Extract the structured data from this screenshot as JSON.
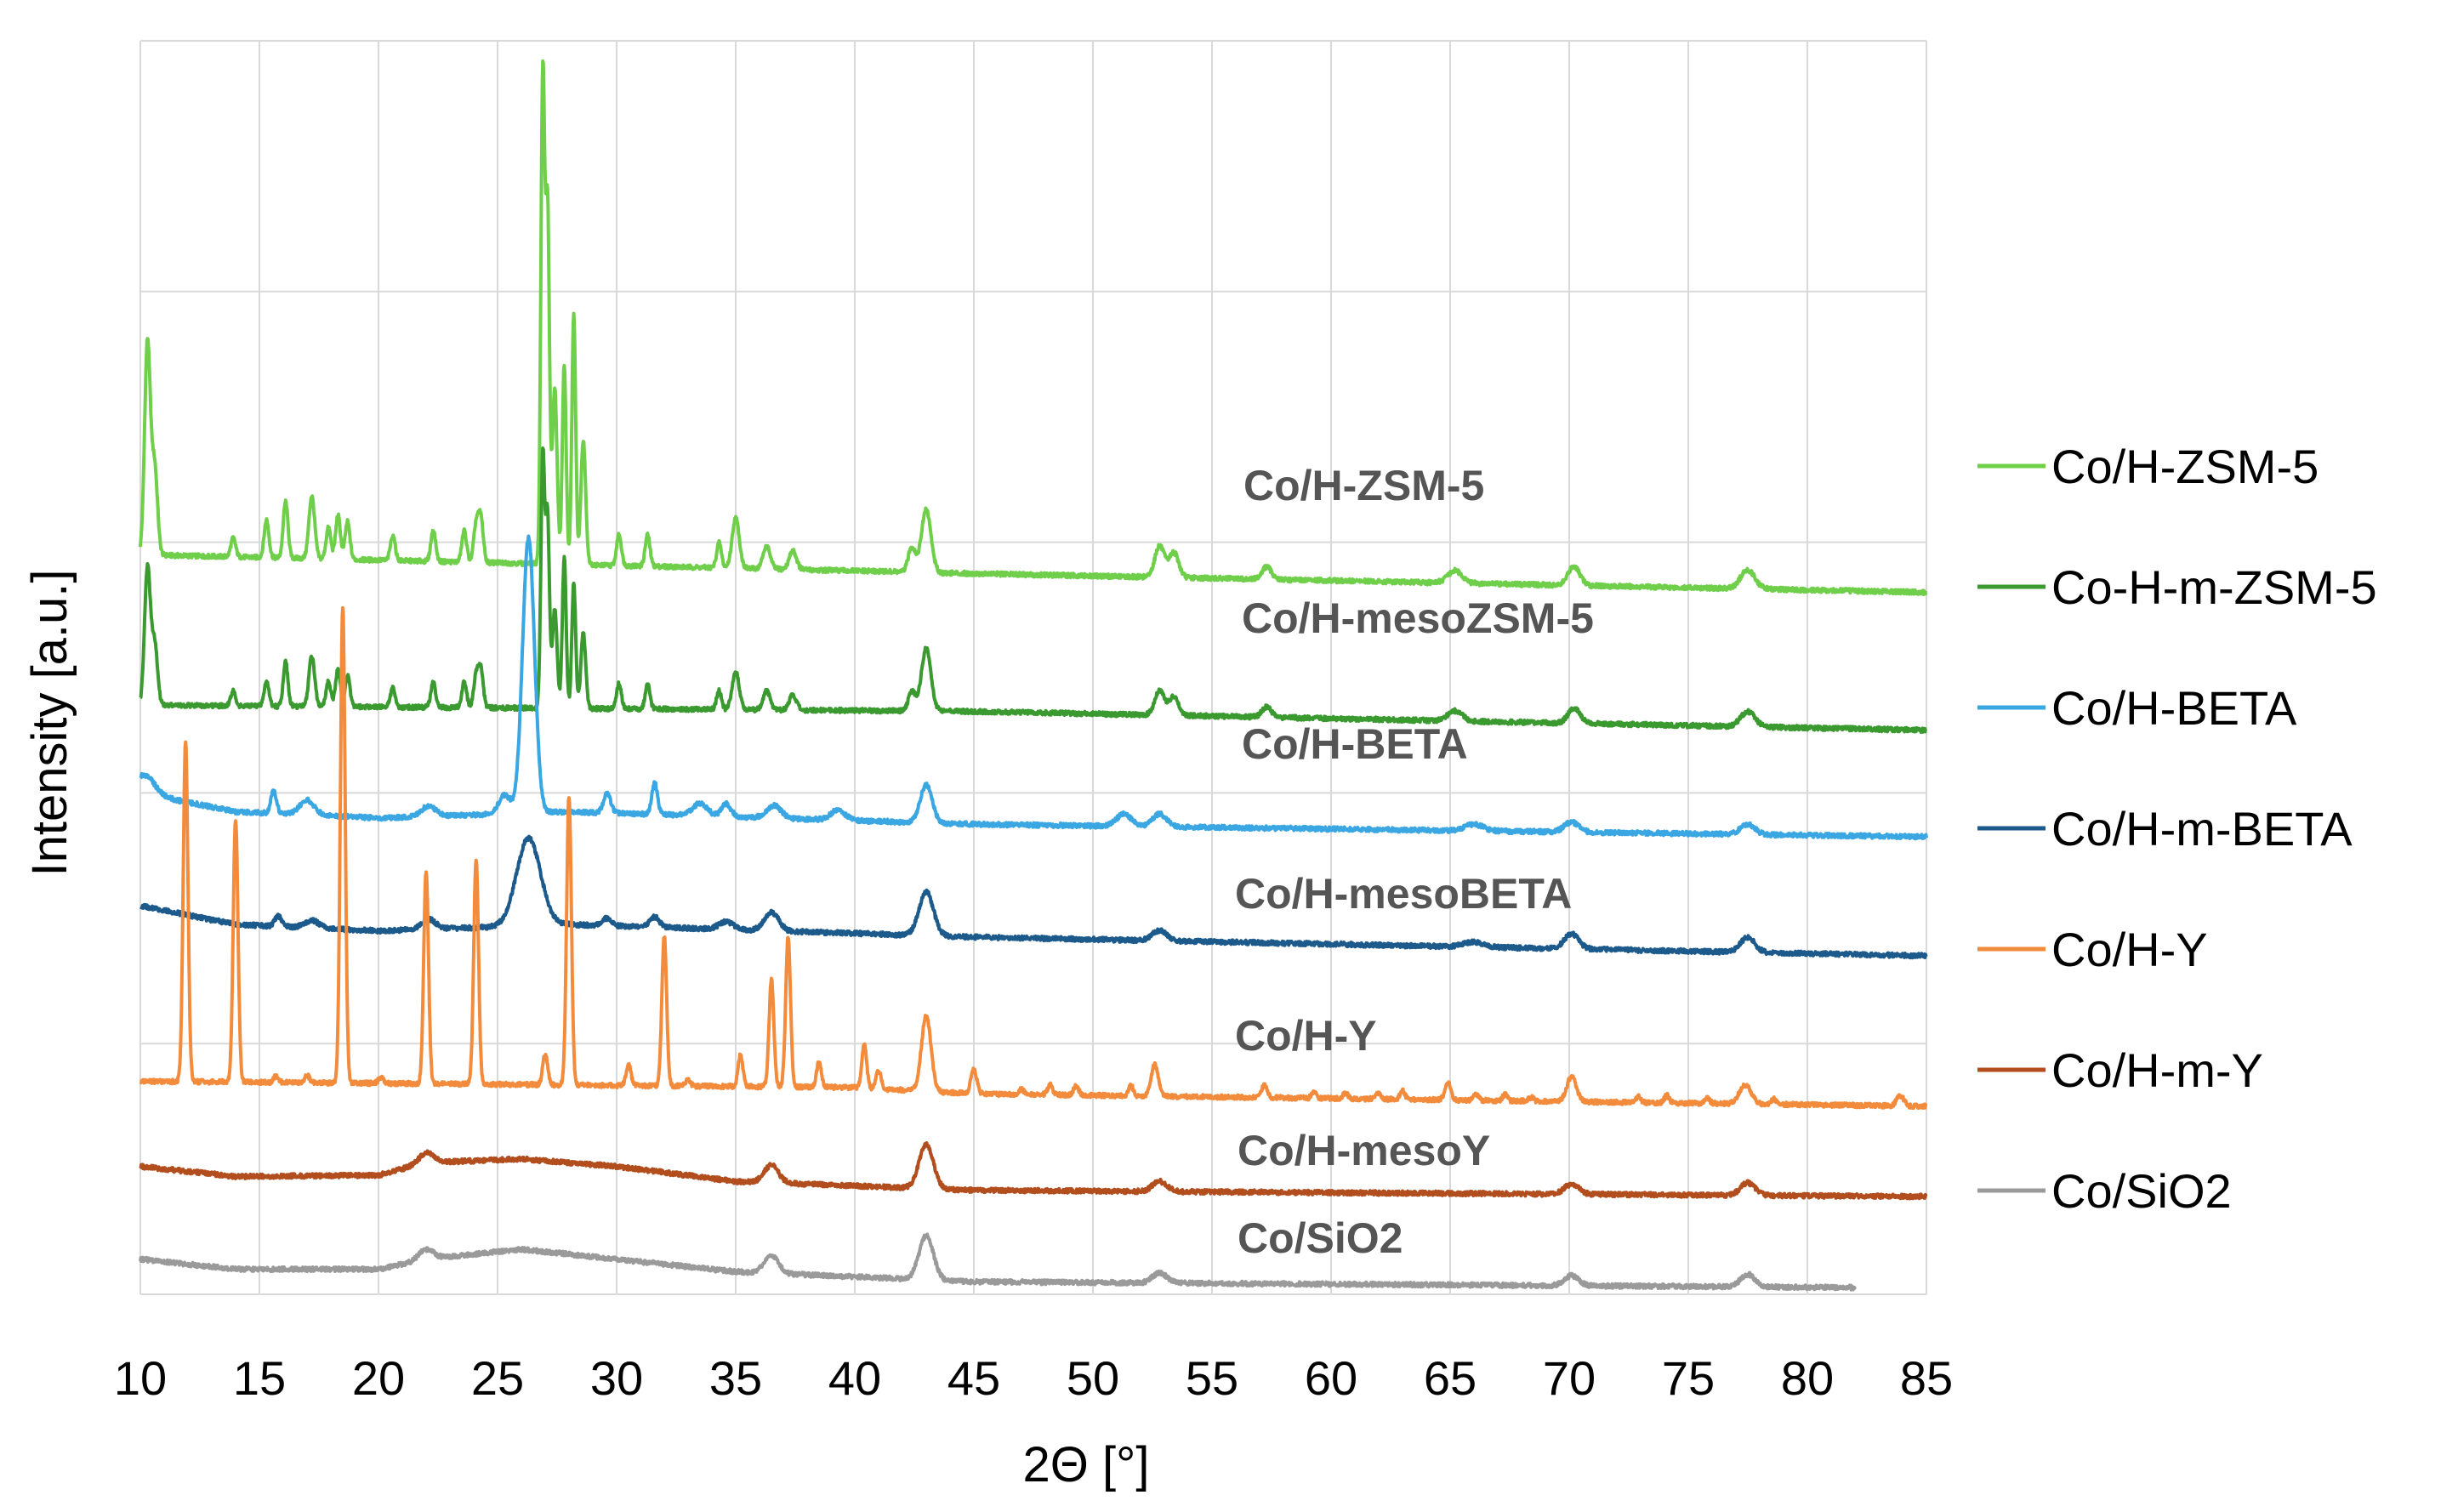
{
  "chart_data": {
    "type": "line",
    "title": "",
    "xlabel": "2Θ [°]",
    "ylabel": "Intensity [a.u.]",
    "xlim": [
      10,
      85
    ],
    "ylim": [
      0,
      100
    ],
    "xticks": [
      "10",
      "15",
      "20",
      "25",
      "30",
      "35",
      "40",
      "45",
      "50",
      "55",
      "60",
      "65",
      "70",
      "75",
      "80",
      "85"
    ],
    "grid": "vertical and horizontal gridlines",
    "legend_position": "right",
    "series": [
      {
        "name": "Co/H-ZSM-5",
        "label": "Co/H-ZSM-5",
        "color": "#6fcf4a",
        "xmax": 85,
        "baseline": [
          [
            10,
            59
          ],
          [
            45,
            57.5
          ],
          [
            85,
            56
          ]
        ],
        "peaks": [
          [
            10.3,
            17,
            0.12
          ],
          [
            10.6,
            7,
            0.12
          ],
          [
            13.9,
            1.5,
            0.1
          ],
          [
            15.3,
            3,
            0.1
          ],
          [
            16.1,
            4.5,
            0.1
          ],
          [
            17.2,
            5,
            0.12
          ],
          [
            17.9,
            2.5,
            0.1
          ],
          [
            18.3,
            3.5,
            0.1
          ],
          [
            18.7,
            3,
            0.1
          ],
          [
            20.6,
            2,
            0.1
          ],
          [
            22.3,
            2.5,
            0.1
          ],
          [
            23.6,
            2.5,
            0.1
          ],
          [
            24.1,
            3,
            0.1
          ],
          [
            24.3,
            3.5,
            0.1
          ],
          [
            26.9,
            39,
            0.08
          ],
          [
            27.1,
            28,
            0.08
          ],
          [
            27.4,
            14,
            0.1
          ],
          [
            27.8,
            16,
            0.08
          ],
          [
            28.2,
            20,
            0.08
          ],
          [
            28.6,
            10,
            0.1
          ],
          [
            30.1,
            2.5,
            0.1
          ],
          [
            31.3,
            2.5,
            0.1
          ],
          [
            34.3,
            2,
            0.1
          ],
          [
            35.0,
            4,
            0.15
          ],
          [
            36.3,
            1.8,
            0.15
          ],
          [
            37.4,
            1.5,
            0.15
          ],
          [
            42.4,
            2,
            0.15
          ],
          [
            43.0,
            5,
            0.2
          ],
          [
            52.8,
            2.5,
            0.2
          ],
          [
            53.4,
            2,
            0.2
          ],
          [
            57.3,
            1,
            0.2
          ],
          [
            65.2,
            1,
            0.3
          ],
          [
            70.2,
            1.5,
            0.25
          ],
          [
            77.5,
            1.5,
            0.3
          ]
        ]
      },
      {
        "name": "Co-H-m-ZSM-5",
        "label": "Co/H-mesoZSM-5",
        "color": "#3a9a2f",
        "xmax": 85,
        "baseline": [
          [
            10,
            47
          ],
          [
            45,
            46.5
          ],
          [
            85,
            45
          ]
        ],
        "peaks": [
          [
            10.3,
            11,
            0.12
          ],
          [
            10.6,
            5,
            0.12
          ],
          [
            13.9,
            1.2,
            0.1
          ],
          [
            15.3,
            2,
            0.1
          ],
          [
            16.1,
            3.5,
            0.1
          ],
          [
            17.2,
            4,
            0.12
          ],
          [
            17.9,
            2,
            0.1
          ],
          [
            18.3,
            3,
            0.1
          ],
          [
            18.7,
            2.5,
            0.1
          ],
          [
            20.6,
            1.5,
            0.1
          ],
          [
            22.3,
            2,
            0.1
          ],
          [
            23.6,
            2,
            0.1
          ],
          [
            24.1,
            2.5,
            0.1
          ],
          [
            24.3,
            3,
            0.1
          ],
          [
            26.9,
            20,
            0.08
          ],
          [
            27.1,
            15,
            0.08
          ],
          [
            27.4,
            8,
            0.1
          ],
          [
            27.8,
            12,
            0.08
          ],
          [
            28.2,
            10,
            0.08
          ],
          [
            28.6,
            6,
            0.1
          ],
          [
            30.1,
            2,
            0.1
          ],
          [
            31.3,
            2,
            0.1
          ],
          [
            34.3,
            1.5,
            0.1
          ],
          [
            35.0,
            3,
            0.15
          ],
          [
            36.3,
            1.5,
            0.15
          ],
          [
            37.4,
            1.2,
            0.15
          ],
          [
            42.4,
            1.5,
            0.15
          ],
          [
            43.0,
            5,
            0.2
          ],
          [
            52.8,
            2,
            0.2
          ],
          [
            53.4,
            1.5,
            0.2
          ],
          [
            57.3,
            0.8,
            0.2
          ],
          [
            65.2,
            0.8,
            0.3
          ],
          [
            70.2,
            1.2,
            0.25
          ],
          [
            77.5,
            1.2,
            0.3
          ]
        ]
      },
      {
        "name": "Co/H-BETA",
        "label": "Co/H-BETA",
        "color": "#3aa6e2",
        "xmax": 85,
        "baseline": [
          [
            10,
            40
          ],
          [
            14,
            38.5
          ],
          [
            20,
            38
          ],
          [
            28,
            38.5
          ],
          [
            45,
            37.5
          ],
          [
            85,
            36.5
          ]
        ],
        "peaks": [
          [
            10.2,
            1.5,
            0.4
          ],
          [
            15.6,
            1.8,
            0.12
          ],
          [
            17.0,
            1.2,
            0.3
          ],
          [
            22.1,
            0.8,
            0.3
          ],
          [
            25.3,
            1.5,
            0.25
          ],
          [
            26.3,
            22,
            0.25
          ],
          [
            29.6,
            1.5,
            0.15
          ],
          [
            31.6,
            2.5,
            0.12
          ],
          [
            33.5,
            1,
            0.3
          ],
          [
            34.6,
            1,
            0.2
          ],
          [
            36.6,
            1,
            0.3
          ],
          [
            39.3,
            0.8,
            0.3
          ],
          [
            43.0,
            3,
            0.25
          ],
          [
            51.3,
            1,
            0.3
          ],
          [
            52.8,
            1,
            0.3
          ],
          [
            66.0,
            0.5,
            0.4
          ],
          [
            70.1,
            0.8,
            0.3
          ],
          [
            77.5,
            0.8,
            0.3
          ]
        ]
      },
      {
        "name": "Co/H-m-BETA",
        "label": "Co/H-mesoBETA",
        "color": "#1d5a8c",
        "xmax": 85,
        "baseline": [
          [
            10,
            31
          ],
          [
            14,
            29.5
          ],
          [
            20,
            29
          ],
          [
            28,
            29.5
          ],
          [
            45,
            28.5
          ],
          [
            85,
            27
          ]
        ],
        "peaks": [
          [
            15.8,
            0.8,
            0.15
          ],
          [
            17.2,
            0.6,
            0.3
          ],
          [
            22.1,
            0.8,
            0.3
          ],
          [
            26.3,
            7,
            0.5
          ],
          [
            29.6,
            0.6,
            0.2
          ],
          [
            31.6,
            0.8,
            0.2
          ],
          [
            34.6,
            0.6,
            0.3
          ],
          [
            36.5,
            1.5,
            0.3
          ],
          [
            43.0,
            3.5,
            0.3
          ],
          [
            52.8,
            0.8,
            0.3
          ],
          [
            66.0,
            0.4,
            0.4
          ],
          [
            70.1,
            1.2,
            0.3
          ],
          [
            77.5,
            1.2,
            0.3
          ]
        ]
      },
      {
        "name": "Co/H-Y",
        "label": "Co/H-Y",
        "color": "#f38b3c",
        "xmax": 85,
        "baseline": [
          [
            10,
            17
          ],
          [
            40,
            16.5
          ],
          [
            45,
            16
          ],
          [
            85,
            15
          ]
        ],
        "peaks": [
          [
            11.9,
            27,
            0.1
          ],
          [
            14.0,
            21,
            0.1
          ],
          [
            15.7,
            0.5,
            0.1
          ],
          [
            17.0,
            0.6,
            0.1
          ],
          [
            18.5,
            38,
            0.1
          ],
          [
            20.1,
            0.5,
            0.1
          ],
          [
            22.0,
            17,
            0.1
          ],
          [
            24.1,
            18,
            0.1
          ],
          [
            27.0,
            2.5,
            0.1
          ],
          [
            28.0,
            23,
            0.1
          ],
          [
            30.5,
            1.7,
            0.1
          ],
          [
            32.0,
            12,
            0.1
          ],
          [
            33.0,
            0.5,
            0.1
          ],
          [
            35.2,
            2.5,
            0.1
          ],
          [
            36.5,
            8.5,
            0.1
          ],
          [
            37.2,
            12,
            0.1
          ],
          [
            38.5,
            2,
            0.1
          ],
          [
            40.4,
            3.5,
            0.1
          ],
          [
            41.0,
            1.5,
            0.1
          ],
          [
            43.0,
            6,
            0.2
          ],
          [
            45.0,
            2,
            0.12
          ],
          [
            47.0,
            0.4,
            0.1
          ],
          [
            48.2,
            0.8,
            0.1
          ],
          [
            49.3,
            0.8,
            0.1
          ],
          [
            51.6,
            0.8,
            0.1
          ],
          [
            52.6,
            2.5,
            0.15
          ],
          [
            57.2,
            1,
            0.12
          ],
          [
            59.3,
            0.5,
            0.1
          ],
          [
            60.6,
            0.5,
            0.1
          ],
          [
            62.0,
            0.5,
            0.1
          ],
          [
            63.0,
            0.7,
            0.1
          ],
          [
            64.9,
            1.5,
            0.12
          ],
          [
            66.1,
            0.5,
            0.1
          ],
          [
            67.3,
            0.5,
            0.1
          ],
          [
            68.4,
            0.3,
            0.1
          ],
          [
            70.1,
            2,
            0.2
          ],
          [
            72.9,
            0.5,
            0.1
          ],
          [
            74.1,
            0.6,
            0.1
          ],
          [
            75.8,
            0.4,
            0.1
          ],
          [
            77.4,
            1.5,
            0.25
          ],
          [
            78.6,
            0.4,
            0.1
          ],
          [
            83.9,
            0.8,
            0.15
          ]
        ]
      },
      {
        "name": "Co/H-m-Y",
        "label": "Co/H-mesoY",
        "color": "#b24d1e",
        "xmax": 85,
        "baseline": [
          [
            10,
            10.2
          ],
          [
            14,
            9.4
          ],
          [
            20,
            9.5
          ],
          [
            22,
            10.5
          ],
          [
            26,
            10.8
          ],
          [
            30,
            10.2
          ],
          [
            35,
            9
          ],
          [
            45,
            8.3
          ],
          [
            85,
            7.8
          ]
        ],
        "peaks": [
          [
            22.0,
            0.8,
            0.3
          ],
          [
            36.5,
            1.4,
            0.3
          ],
          [
            43.0,
            3.5,
            0.3
          ],
          [
            52.8,
            0.8,
            0.3
          ],
          [
            70.1,
            0.8,
            0.3
          ],
          [
            77.5,
            1,
            0.3
          ]
        ]
      },
      {
        "name": "Co/SiO2",
        "label": "Co/SiO2",
        "color": "#9a9a9a",
        "xmax": 82,
        "baseline": [
          [
            10,
            2.8
          ],
          [
            14,
            2
          ],
          [
            20,
            2
          ],
          [
            22,
            2.8
          ],
          [
            26,
            3.6
          ],
          [
            30,
            2.8
          ],
          [
            35,
            1.8
          ],
          [
            45,
            1
          ],
          [
            85,
            0.5
          ]
        ],
        "peaks": [
          [
            22.0,
            0.8,
            0.3
          ],
          [
            36.5,
            1.4,
            0.3
          ],
          [
            43.0,
            3.5,
            0.3
          ],
          [
            52.8,
            0.8,
            0.3
          ],
          [
            70.1,
            0.8,
            0.3
          ],
          [
            77.5,
            1,
            0.3
          ]
        ]
      }
    ]
  }
}
